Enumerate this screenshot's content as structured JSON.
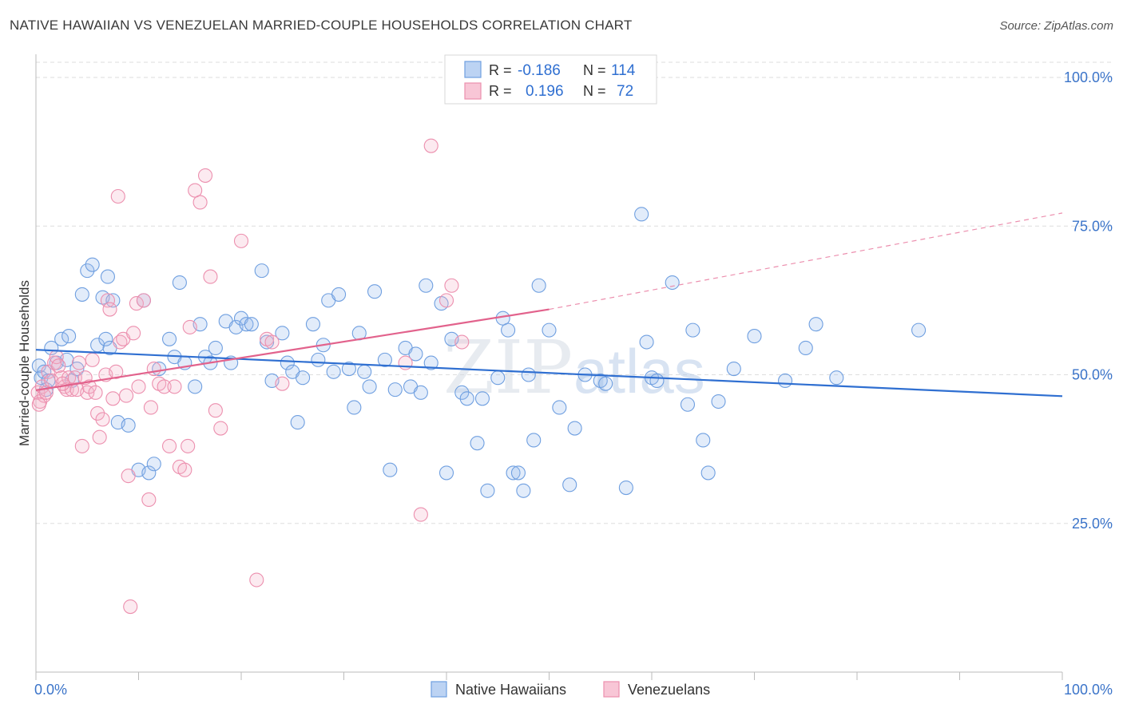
{
  "header": {
    "title": "NATIVE HAWAIIAN VS VENEZUELAN MARRIED-COUPLE HOUSEHOLDS CORRELATION CHART",
    "source": "Source: ZipAtlas.com"
  },
  "legend": {
    "rows": [
      {
        "r_label": "R =",
        "r_value": "-0.186",
        "n_label": "N =",
        "n_value": "114"
      },
      {
        "r_label": "R =",
        "r_value": "0.196",
        "n_label": "N =",
        "n_value": "72"
      }
    ]
  },
  "watermark": {
    "zip": "ZIP",
    "atlas": "atlas"
  },
  "colors": {
    "blue": "#6f9fe0",
    "blue_line": "#2f6fd1",
    "pink": "#ec8fae",
    "pink_line": "#e2628c",
    "tick": "#3b74c9"
  },
  "chart_data": {
    "type": "scatter",
    "title": "NATIVE HAWAIIAN VS VENEZUELAN MARRIED-COUPLE HOUSEHOLDS CORRELATION CHART",
    "ylabel": "Married-couple Households",
    "xlabel": "",
    "xlim": [
      0,
      100
    ],
    "ylim": [
      0,
      100
    ],
    "x_tick_labels": [
      "0.0%",
      "100.0%"
    ],
    "y_ticks": [
      {
        "value": 25,
        "label": "25.0%"
      },
      {
        "value": 50,
        "label": "50.0%"
      },
      {
        "value": 75,
        "label": "75.0%"
      },
      {
        "value": 100,
        "label": "100.0%"
      }
    ],
    "grid": true,
    "legend_position": "top-center",
    "series": [
      {
        "name": "Native Hawaiians",
        "color": "#6f9fe0",
        "r": -0.186,
        "n": 114,
        "trend": {
          "x": [
            0,
            100
          ],
          "y": [
            54.2,
            46.4
          ]
        },
        "points": [
          [
            0.3,
            51.5
          ],
          [
            0.5,
            49.5
          ],
          [
            1.0,
            47.5
          ],
          [
            1.5,
            54.5
          ],
          [
            2.0,
            52.0
          ],
          [
            2.5,
            56.0
          ],
          [
            3.0,
            52.5
          ],
          [
            3.5,
            49.0
          ],
          [
            4.0,
            51.0
          ],
          [
            4.5,
            63.5
          ],
          [
            5.0,
            67.5
          ],
          [
            5.5,
            68.5
          ],
          [
            6.0,
            55.0
          ],
          [
            6.5,
            63.0
          ],
          [
            7.0,
            66.5
          ],
          [
            7.5,
            62.5
          ],
          [
            8.0,
            42.0
          ],
          [
            9.0,
            41.5
          ],
          [
            10.0,
            34.0
          ],
          [
            10.5,
            62.5
          ],
          [
            11.0,
            33.5
          ],
          [
            11.5,
            35.0
          ],
          [
            12.0,
            51.0
          ],
          [
            13.0,
            56.0
          ],
          [
            13.5,
            53.0
          ],
          [
            14.0,
            65.5
          ],
          [
            14.5,
            52.0
          ],
          [
            15.5,
            48.0
          ],
          [
            16.0,
            58.5
          ],
          [
            16.5,
            53.0
          ],
          [
            17.0,
            52.0
          ],
          [
            17.5,
            54.5
          ],
          [
            18.5,
            59.0
          ],
          [
            19.0,
            52.0
          ],
          [
            19.5,
            58.0
          ],
          [
            20.0,
            59.5
          ],
          [
            20.5,
            58.5
          ],
          [
            21.0,
            58.5
          ],
          [
            22.0,
            67.5
          ],
          [
            22.5,
            55.5
          ],
          [
            23.0,
            49.0
          ],
          [
            24.0,
            57.0
          ],
          [
            24.5,
            52.0
          ],
          [
            25.0,
            50.5
          ],
          [
            25.5,
            42.0
          ],
          [
            26.0,
            49.5
          ],
          [
            27.0,
            58.5
          ],
          [
            27.5,
            52.5
          ],
          [
            28.0,
            55.0
          ],
          [
            28.5,
            62.5
          ],
          [
            29.0,
            50.5
          ],
          [
            29.5,
            63.5
          ],
          [
            30.5,
            51.0
          ],
          [
            31.0,
            44.5
          ],
          [
            31.5,
            57.0
          ],
          [
            32.0,
            50.5
          ],
          [
            32.5,
            48.0
          ],
          [
            33.0,
            64.0
          ],
          [
            34.0,
            52.5
          ],
          [
            34.5,
            34.0
          ],
          [
            35.0,
            47.5
          ],
          [
            36.0,
            54.5
          ],
          [
            36.5,
            48.0
          ],
          [
            37.0,
            53.5
          ],
          [
            37.5,
            47.0
          ],
          [
            38.0,
            65.0
          ],
          [
            38.5,
            52.0
          ],
          [
            39.5,
            62.0
          ],
          [
            40.0,
            33.5
          ],
          [
            40.5,
            56.0
          ],
          [
            41.5,
            47.0
          ],
          [
            42.0,
            46.0
          ],
          [
            43.0,
            38.5
          ],
          [
            43.5,
            46.0
          ],
          [
            44.0,
            30.5
          ],
          [
            45.0,
            49.5
          ],
          [
            45.5,
            59.5
          ],
          [
            46.0,
            57.5
          ],
          [
            46.5,
            33.5
          ],
          [
            47.0,
            33.5
          ],
          [
            47.5,
            30.5
          ],
          [
            48.0,
            50.0
          ],
          [
            48.5,
            39.0
          ],
          [
            49.0,
            65.0
          ],
          [
            50.0,
            57.5
          ],
          [
            51.0,
            44.5
          ],
          [
            52.0,
            31.5
          ],
          [
            52.5,
            41.0
          ],
          [
            53.5,
            50.0
          ],
          [
            55.0,
            49.0
          ],
          [
            55.5,
            48.5
          ],
          [
            57.5,
            31.0
          ],
          [
            59.0,
            77.0
          ],
          [
            59.5,
            55.5
          ],
          [
            60.0,
            49.5
          ],
          [
            60.5,
            49.0
          ],
          [
            62.0,
            65.5
          ],
          [
            63.5,
            45.0
          ],
          [
            64.0,
            57.5
          ],
          [
            65.0,
            39.0
          ],
          [
            65.5,
            33.5
          ],
          [
            66.5,
            45.5
          ],
          [
            68.0,
            51.0
          ],
          [
            70.0,
            56.5
          ],
          [
            73.0,
            49.0
          ],
          [
            75.0,
            54.5
          ],
          [
            76.0,
            58.5
          ],
          [
            78.0,
            49.5
          ],
          [
            86.0,
            57.5
          ],
          [
            0.8,
            50.5
          ],
          [
            1.2,
            49.0
          ],
          [
            3.2,
            56.5
          ],
          [
            6.8,
            56.0
          ],
          [
            7.2,
            54.5
          ]
        ]
      },
      {
        "name": "Venezuelans",
        "color": "#ec8fae",
        "r": 0.196,
        "n": 72,
        "trend": {
          "x": [
            0,
            50
          ],
          "y": [
            47.4,
            61.0
          ],
          "dashed_to": {
            "x": 100,
            "y": 77.2
          }
        },
        "points": [
          [
            0.2,
            47.0
          ],
          [
            0.4,
            45.5
          ],
          [
            0.6,
            48.0
          ],
          [
            0.8,
            46.5
          ],
          [
            1.0,
            47.0
          ],
          [
            1.2,
            50.5
          ],
          [
            1.5,
            49.0
          ],
          [
            1.8,
            52.0
          ],
          [
            2.0,
            53.0
          ],
          [
            2.2,
            51.5
          ],
          [
            2.5,
            49.5
          ],
          [
            2.8,
            48.0
          ],
          [
            3.0,
            47.5
          ],
          [
            3.2,
            49.5
          ],
          [
            3.5,
            47.5
          ],
          [
            3.8,
            49.5
          ],
          [
            4.0,
            47.5
          ],
          [
            4.2,
            52.0
          ],
          [
            4.5,
            38.0
          ],
          [
            4.8,
            49.5
          ],
          [
            5.0,
            47.0
          ],
          [
            5.2,
            48.0
          ],
          [
            5.5,
            52.5
          ],
          [
            5.8,
            47.0
          ],
          [
            6.0,
            43.5
          ],
          [
            6.2,
            39.5
          ],
          [
            6.5,
            42.5
          ],
          [
            6.8,
            50.0
          ],
          [
            7.0,
            62.5
          ],
          [
            7.2,
            61.0
          ],
          [
            7.5,
            46.0
          ],
          [
            7.8,
            50.5
          ],
          [
            8.0,
            80.0
          ],
          [
            8.2,
            55.5
          ],
          [
            8.5,
            56.0
          ],
          [
            8.8,
            46.5
          ],
          [
            9.0,
            33.0
          ],
          [
            9.2,
            11.0
          ],
          [
            9.5,
            57.0
          ],
          [
            9.8,
            62.0
          ],
          [
            10.0,
            48.0
          ],
          [
            10.5,
            62.5
          ],
          [
            11.0,
            29.0
          ],
          [
            11.2,
            44.5
          ],
          [
            11.5,
            51.0
          ],
          [
            12.0,
            48.5
          ],
          [
            12.5,
            48.0
          ],
          [
            13.0,
            38.0
          ],
          [
            13.5,
            48.0
          ],
          [
            14.0,
            34.5
          ],
          [
            14.5,
            34.0
          ],
          [
            14.8,
            38.0
          ],
          [
            15.0,
            58.0
          ],
          [
            15.5,
            81.0
          ],
          [
            16.0,
            79.0
          ],
          [
            16.5,
            83.5
          ],
          [
            17.0,
            66.5
          ],
          [
            17.5,
            44.0
          ],
          [
            18.0,
            41.0
          ],
          [
            20.0,
            72.5
          ],
          [
            21.5,
            15.5
          ],
          [
            22.5,
            56.0
          ],
          [
            23.0,
            55.5
          ],
          [
            24.0,
            48.5
          ],
          [
            36.0,
            52.0
          ],
          [
            37.5,
            26.5
          ],
          [
            38.5,
            88.5
          ],
          [
            40.0,
            62.5
          ],
          [
            40.5,
            65.0
          ],
          [
            41.5,
            55.5
          ],
          [
            0.3,
            45.0
          ],
          [
            2.6,
            48.5
          ]
        ]
      }
    ]
  }
}
